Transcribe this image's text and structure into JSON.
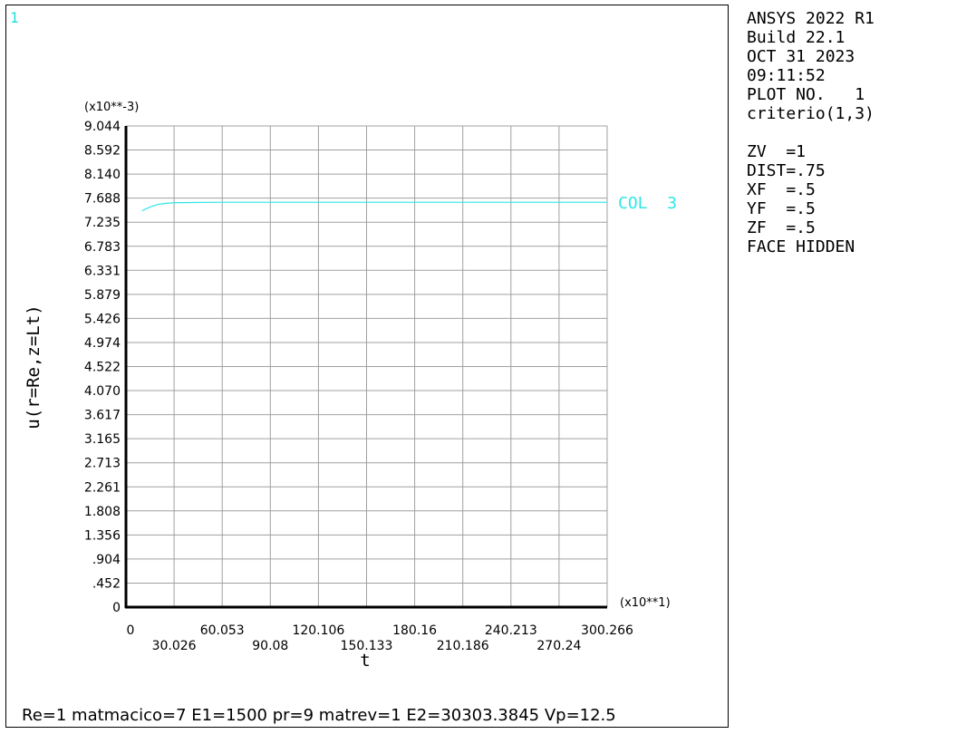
{
  "window_number": "1",
  "info": {
    "lines": [
      "ANSYS 2022 R1",
      "Build 22.1",
      "OCT 31 2023",
      "09:11:52",
      "PLOT NO.   1",
      "criterio(1,3)"
    ],
    "view_lines": [
      "ZV  =1",
      "DIST=.75",
      "XF  =.5",
      "YF  =.5",
      "ZF  =.5",
      "FACE HIDDEN"
    ]
  },
  "footer_text": "Re=1 matmacico=7 E1=1500 pr=9 matrev=1 E2=30303.3845 Vp=12.5",
  "colors": {
    "series": "#2ee6e6",
    "grid": "#a0a0a0",
    "window_number": "#22dddd"
  },
  "chart_data": {
    "type": "line",
    "xlabel": "t",
    "ylabel": "u(r=Re,z=Lt)",
    "x_multiplier": "(x10**1)",
    "y_multiplier": "(x10**-3)",
    "xlim": [
      0,
      300.266
    ],
    "ylim": [
      0,
      9.044
    ],
    "x_ticks_upper": [
      "0",
      "60.053",
      "120.106",
      "180.16",
      "240.213",
      "300.266"
    ],
    "x_ticks_lower": [
      "30.026",
      "90.08",
      "150.133",
      "210.186",
      "270.24"
    ],
    "y_ticks": [
      "0",
      ".452",
      ".904",
      "1.356",
      "1.808",
      "2.261",
      "2.713",
      "3.165",
      "3.617",
      "4.070",
      "4.522",
      "4.974",
      "5.426",
      "5.879",
      "6.331",
      "6.783",
      "7.235",
      "7.688",
      "8.140",
      "8.592",
      "9.044"
    ],
    "grid": true,
    "series": [
      {
        "name": "COL  3",
        "x": [
          10,
          15,
          20,
          25,
          30,
          40,
          60,
          100,
          150,
          200,
          250,
          300.266
        ],
        "y": [
          7.45,
          7.52,
          7.57,
          7.59,
          7.6,
          7.605,
          7.61,
          7.61,
          7.61,
          7.61,
          7.61,
          7.61
        ]
      }
    ]
  }
}
